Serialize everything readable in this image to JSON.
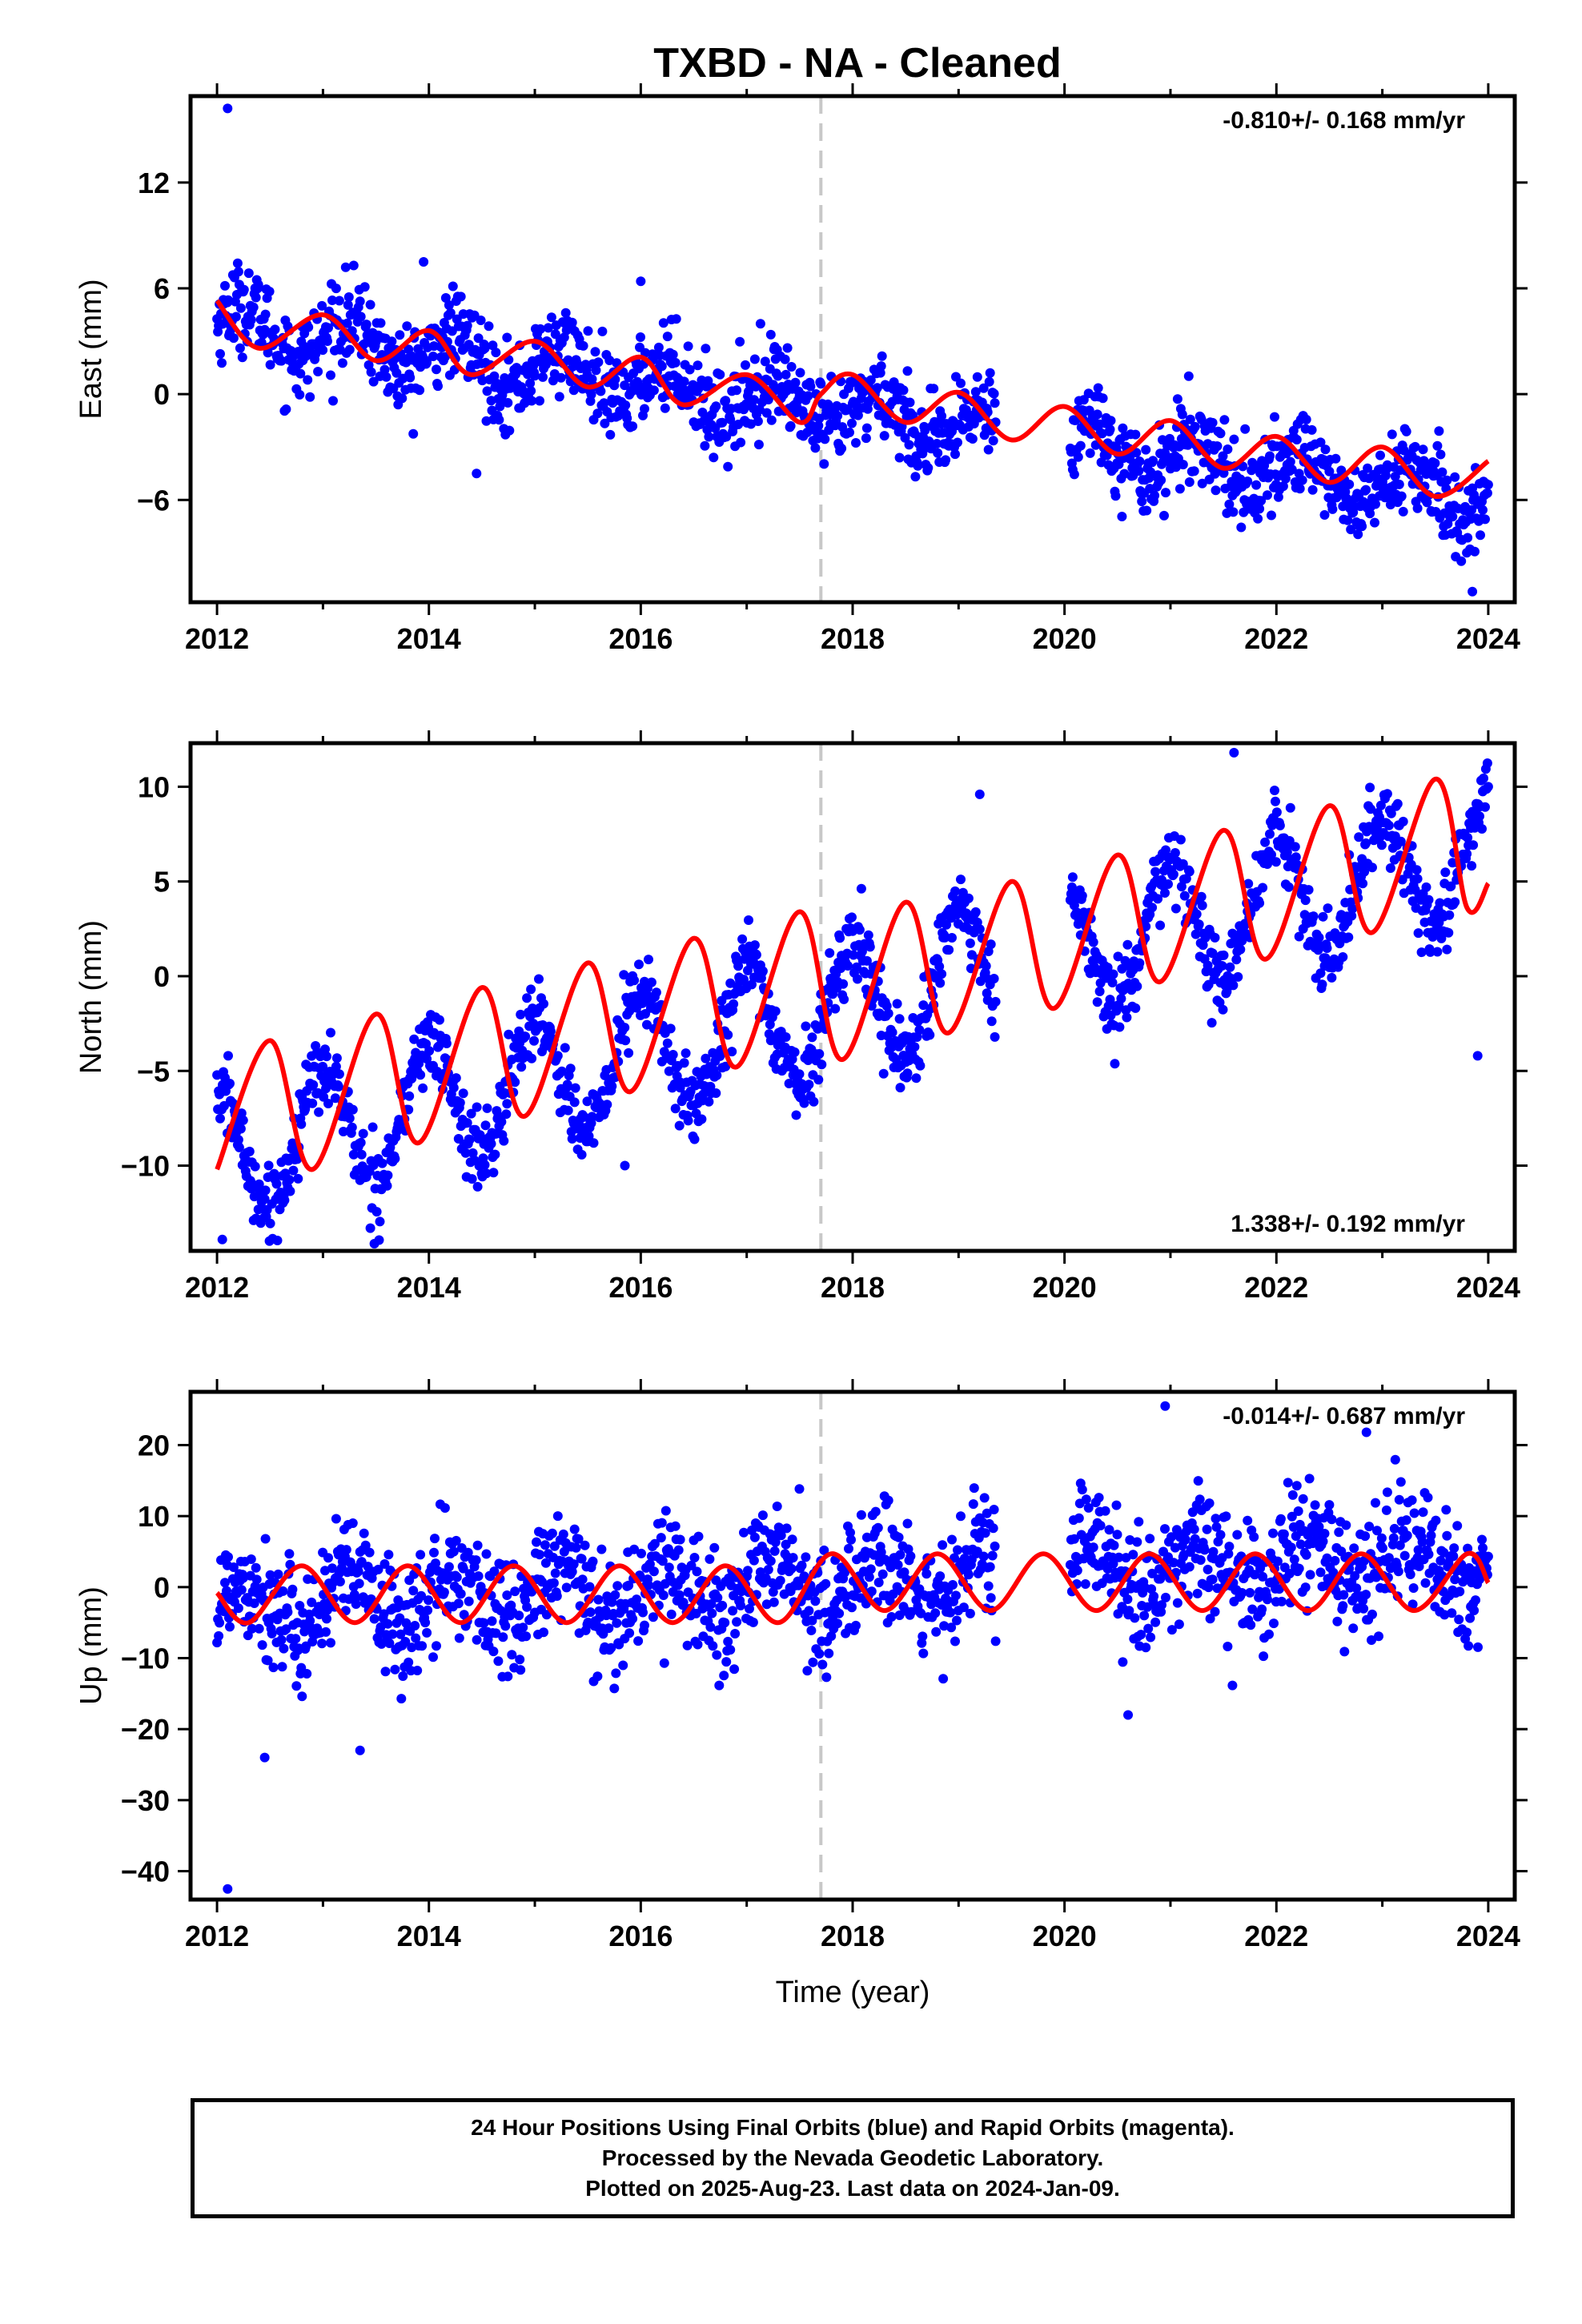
{
  "title": "TXBD  - NA - Cleaned",
  "footer": {
    "line1": "24 Hour Positions Using Final Orbits (blue) and Rapid Orbits (magenta).",
    "line2": "Processed by the Nevada Geodetic Laboratory.",
    "line3": "Plotted on 2025-Aug-23. Last data on 2024-Jan-09."
  },
  "colors": {
    "data": "#0000ff",
    "fit": "#ff0000",
    "marker_line": "#c8c8c8",
    "frame": "#000000"
  },
  "chart_data": [
    {
      "type": "scatter",
      "panel": "east",
      "ylabel": "East (mm)",
      "xlabel": "",
      "rate_label": "-0.810+/- 0.168 mm/yr",
      "rate_position": "top-right",
      "xlim": [
        2011.75,
        2024.25
      ],
      "ylim": [
        -11.8,
        16.9
      ],
      "xticks": [
        2012,
        2014,
        2016,
        2018,
        2020,
        2022,
        2024
      ],
      "yticks": [
        -6,
        0,
        6,
        12
      ],
      "vline_x": 2017.7,
      "gaps": [
        [
          2019.35,
          2020.05
        ]
      ],
      "trend": {
        "start": 2012.0,
        "end": 2024.0,
        "y_start": 4.0,
        "y_end": -6.0,
        "annual_amp": 1.3,
        "annual_phase": 0.0,
        "semi_amp": 0.0,
        "noise": 1.2
      },
      "fit_points": [
        [
          2012.0,
          5.3
        ],
        [
          2012.4,
          2.6
        ],
        [
          2013.0,
          4.5
        ],
        [
          2013.5,
          1.9
        ],
        [
          2014.0,
          3.6
        ],
        [
          2014.4,
          1.1
        ],
        [
          2015.0,
          3.0
        ],
        [
          2015.5,
          0.4
        ],
        [
          2016.0,
          2.1
        ],
        [
          2016.4,
          -0.6
        ],
        [
          2017.0,
          1.1
        ],
        [
          2017.5,
          -1.6
        ],
        [
          2017.7,
          0.0
        ],
        [
          2018.0,
          1.1
        ],
        [
          2018.5,
          -1.6
        ],
        [
          2019.0,
          0.1
        ],
        [
          2019.5,
          -2.6
        ],
        [
          2020.0,
          -0.7
        ],
        [
          2020.5,
          -3.4
        ],
        [
          2021.0,
          -1.5
        ],
        [
          2021.5,
          -4.2
        ],
        [
          2022.0,
          -2.4
        ],
        [
          2022.5,
          -5.0
        ],
        [
          2023.0,
          -3.0
        ],
        [
          2023.5,
          -5.8
        ],
        [
          2024.0,
          -3.8
        ]
      ],
      "outliers": [
        [
          2012.1,
          16.2
        ],
        [
          2013.95,
          7.5
        ],
        [
          2016.0,
          6.4
        ],
        [
          2014.45,
          -4.5
        ],
        [
          2023.85,
          -11.2
        ]
      ]
    },
    {
      "type": "scatter",
      "panel": "north",
      "ylabel": "North (mm)",
      "xlabel": "",
      "rate_label": "1.338+/- 0.192 mm/yr",
      "rate_position": "bottom-right",
      "xlim": [
        2011.75,
        2024.25
      ],
      "ylim": [
        -14.5,
        12.3
      ],
      "xticks": [
        2012,
        2014,
        2016,
        2018,
        2020,
        2022,
        2024
      ],
      "yticks": [
        -10,
        -5,
        0,
        5,
        10
      ],
      "vline_x": 2017.7,
      "gaps": [
        [
          2019.35,
          2020.05
        ]
      ],
      "trend": {
        "start": 2012.0,
        "end": 2024.0,
        "y_start": -9.5,
        "y_end": 6.5,
        "annual_amp": 3.3,
        "annual_phase": 0.25,
        "semi_amp": 0.0,
        "noise": 1.0
      },
      "fit_points": [
        [
          2012.0,
          -10.2
        ],
        [
          2012.5,
          -3.4
        ],
        [
          2012.9,
          -10.2
        ],
        [
          2013.5,
          -2.0
        ],
        [
          2013.9,
          -8.8
        ],
        [
          2014.5,
          -0.6
        ],
        [
          2014.9,
          -7.4
        ],
        [
          2015.5,
          0.7
        ],
        [
          2015.9,
          -6.1
        ],
        [
          2016.5,
          2.0
        ],
        [
          2016.9,
          -4.8
        ],
        [
          2017.5,
          3.4
        ],
        [
          2017.9,
          -4.4
        ],
        [
          2018.5,
          3.9
        ],
        [
          2018.9,
          -3.0
        ],
        [
          2019.5,
          5.0
        ],
        [
          2019.9,
          -1.7
        ],
        [
          2020.5,
          6.4
        ],
        [
          2020.9,
          -0.3
        ],
        [
          2021.5,
          7.7
        ],
        [
          2021.9,
          0.9
        ],
        [
          2022.5,
          9.0
        ],
        [
          2022.9,
          2.3
        ],
        [
          2023.5,
          10.4
        ],
        [
          2023.8,
          3.6
        ],
        [
          2024.0,
          4.9
        ]
      ],
      "outliers": [
        [
          2012.05,
          -13.9
        ],
        [
          2015.85,
          -10.0
        ],
        [
          2019.2,
          9.6
        ],
        [
          2021.6,
          11.8
        ],
        [
          2023.9,
          -4.2
        ]
      ]
    },
    {
      "type": "scatter",
      "panel": "up",
      "ylabel": "Up (mm)",
      "xlabel": "Time (year)",
      "rate_label": "-0.014+/- 0.687 mm/yr",
      "rate_position": "top-right",
      "xlim": [
        2011.75,
        2024.25
      ],
      "ylim": [
        -44.0,
        27.5
      ],
      "xticks": [
        2012,
        2014,
        2016,
        2018,
        2020,
        2022,
        2024
      ],
      "yticks": [
        -40,
        -30,
        -20,
        -10,
        0,
        10,
        20
      ],
      "vline_x": 2017.7,
      "gaps": [
        [
          2019.35,
          2020.05
        ]
      ],
      "trend": {
        "start": 2012.0,
        "end": 2024.0,
        "y_start": -3.0,
        "y_end": 4.0,
        "annual_amp": 3.8,
        "annual_phase": 0.0,
        "semi_amp": 0.0,
        "noise": 4.2
      },
      "fit_points": [
        [
          2012.0,
          -0.8
        ],
        [
          2012.3,
          -5.0
        ],
        [
          2012.8,
          3.0
        ],
        [
          2013.3,
          -5.0
        ],
        [
          2013.8,
          3.0
        ],
        [
          2014.3,
          -5.0
        ],
        [
          2014.8,
          3.0
        ],
        [
          2015.3,
          -5.0
        ],
        [
          2015.8,
          3.0
        ],
        [
          2016.3,
          -5.0
        ],
        [
          2016.8,
          3.0
        ],
        [
          2017.3,
          -5.0
        ],
        [
          2017.8,
          4.7
        ],
        [
          2018.3,
          -3.3
        ],
        [
          2018.8,
          4.7
        ],
        [
          2019.3,
          -3.3
        ],
        [
          2019.8,
          4.7
        ],
        [
          2020.3,
          -3.3
        ],
        [
          2020.8,
          4.7
        ],
        [
          2021.3,
          -3.3
        ],
        [
          2021.8,
          4.7
        ],
        [
          2022.3,
          -3.3
        ],
        [
          2022.8,
          4.7
        ],
        [
          2023.3,
          -3.3
        ],
        [
          2023.8,
          4.7
        ],
        [
          2024.0,
          0.6
        ]
      ],
      "outliers": [
        [
          2012.1,
          -42.5
        ],
        [
          2012.45,
          -24.0
        ],
        [
          2013.35,
          -23.0
        ],
        [
          2020.95,
          25.5
        ],
        [
          2022.85,
          21.8
        ],
        [
          2020.6,
          -18.0
        ]
      ]
    }
  ]
}
